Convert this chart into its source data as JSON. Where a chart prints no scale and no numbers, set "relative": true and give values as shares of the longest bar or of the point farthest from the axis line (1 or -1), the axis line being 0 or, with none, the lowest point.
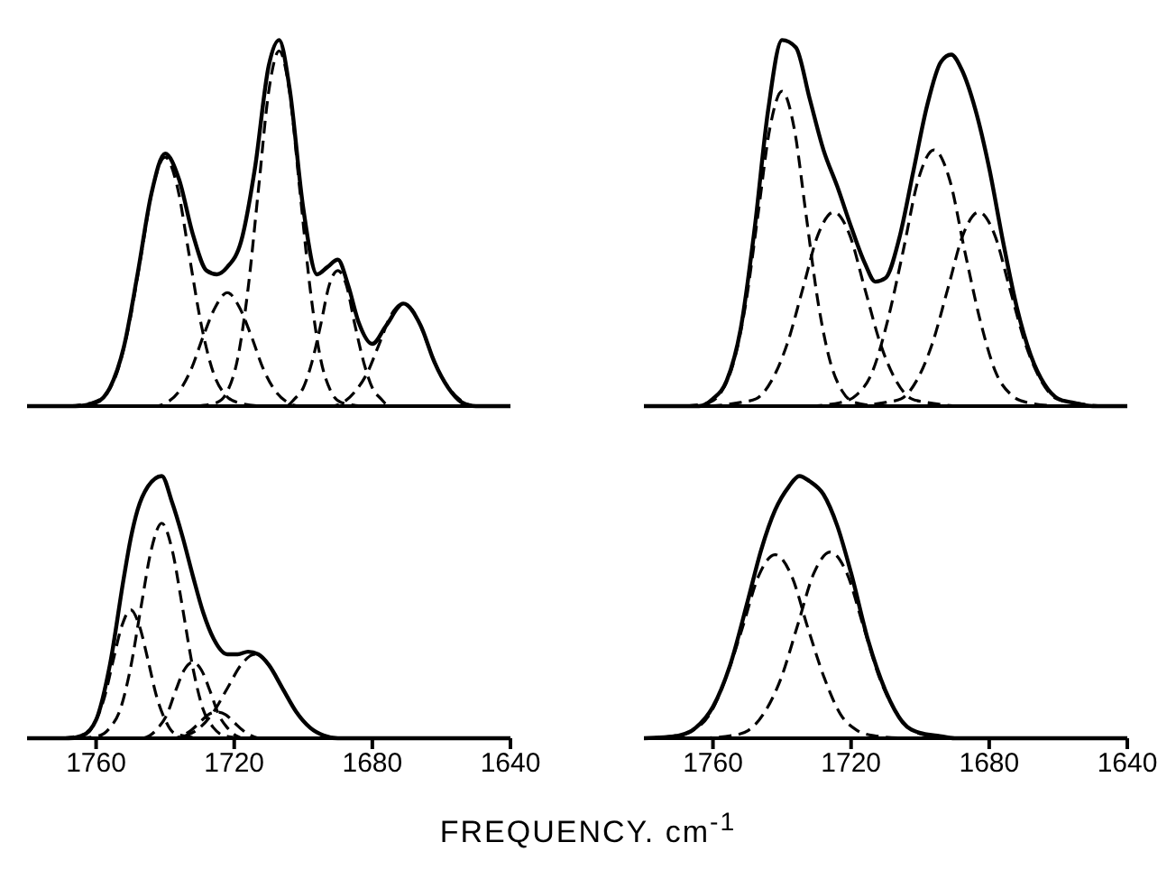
{
  "chart_data": [
    {
      "type": "line",
      "relative": true,
      "xlim": [
        1780,
        1640
      ],
      "tick_labels": false,
      "series": [
        {
          "color": "#000000",
          "line_style": "solid",
          "x": [
            1780,
            1772,
            1766,
            1760,
            1756,
            1752,
            1748,
            1744,
            1740,
            1736,
            1732,
            1728,
            1725,
            1722,
            1718,
            1714,
            1710,
            1707,
            1704,
            1700,
            1696,
            1693,
            1690,
            1687,
            1684,
            1680,
            1676,
            1671,
            1666,
            1662,
            1658,
            1654,
            1650,
            1646,
            1640
          ],
          "values": [
            0,
            0,
            0,
            0.01,
            0.05,
            0.16,
            0.36,
            0.58,
            0.69,
            0.62,
            0.47,
            0.37,
            0.36,
            0.38,
            0.45,
            0.65,
            0.93,
            1.0,
            0.87,
            0.54,
            0.36,
            0.38,
            0.4,
            0.33,
            0.23,
            0.17,
            0.22,
            0.28,
            0.22,
            0.12,
            0.05,
            0.01,
            0,
            0,
            0
          ]
        },
        {
          "color": "#000000",
          "line_style": "dashed",
          "x": [
            1768,
            1761,
            1757.5,
            1754,
            1750.5,
            1747,
            1743.5,
            1740,
            1736.5,
            1733,
            1729.5,
            1726,
            1722.5,
            1719,
            1712
          ],
          "values": [
            0,
            0.01,
            0.03,
            0.09,
            0.22,
            0.41,
            0.6,
            0.68,
            0.6,
            0.41,
            0.22,
            0.09,
            0.03,
            0.01,
            0
          ]
        },
        {
          "color": "#000000",
          "line_style": "dashed",
          "x": [
            1750,
            1743,
            1739.5,
            1736,
            1732.5,
            1729,
            1725.5,
            1722,
            1718.5,
            1715,
            1711.5,
            1708,
            1704.5,
            1701,
            1694
          ],
          "values": [
            0,
            0,
            0.01,
            0.04,
            0.1,
            0.19,
            0.27,
            0.31,
            0.27,
            0.19,
            0.1,
            0.04,
            0.01,
            0,
            0
          ]
        },
        {
          "color": "#000000",
          "line_style": "dashed",
          "x": [
            1731,
            1725,
            1722,
            1719,
            1716,
            1713,
            1710,
            1707,
            1704,
            1701,
            1698,
            1695,
            1692,
            1689,
            1683
          ],
          "values": [
            0,
            0.01,
            0.04,
            0.13,
            0.32,
            0.59,
            0.86,
            0.97,
            0.86,
            0.59,
            0.32,
            0.13,
            0.04,
            0.01,
            0
          ]
        },
        {
          "color": "#000000",
          "line_style": "dashed",
          "x": [
            1710,
            1705,
            1702.5,
            1700,
            1697.5,
            1695,
            1692.5,
            1690,
            1687.5,
            1685,
            1682.5,
            1680,
            1677.5,
            1675,
            1670
          ],
          "values": [
            0,
            0,
            0.02,
            0.05,
            0.12,
            0.22,
            0.33,
            0.37,
            0.33,
            0.22,
            0.12,
            0.05,
            0.02,
            0,
            0
          ]
        },
        {
          "color": "#000000",
          "line_style": "dashed",
          "x": [
            1699,
            1692,
            1688.5,
            1685,
            1681.5,
            1678,
            1674.5,
            1671,
            1667.5,
            1664,
            1660.5,
            1657,
            1653.5,
            1650,
            1643
          ],
          "values": [
            0,
            0,
            0.01,
            0.04,
            0.09,
            0.17,
            0.25,
            0.28,
            0.25,
            0.17,
            0.09,
            0.04,
            0.01,
            0,
            0
          ]
        }
      ]
    },
    {
      "type": "line",
      "relative": true,
      "xlim": [
        1780,
        1640
      ],
      "tick_labels": false,
      "series": [
        {
          "color": "#000000",
          "line_style": "solid",
          "x": [
            1780,
            1768,
            1764,
            1760,
            1756,
            1752,
            1748,
            1744,
            1740,
            1736,
            1732,
            1728,
            1724,
            1720,
            1716,
            1713,
            1710,
            1706,
            1702,
            1698,
            1694,
            1691,
            1688,
            1684,
            1680,
            1676,
            1672,
            1668,
            1664,
            1660,
            1656,
            1650,
            1640
          ],
          "values": [
            0,
            0,
            0,
            0.02,
            0.07,
            0.21,
            0.48,
            0.81,
            1.0,
            0.98,
            0.84,
            0.7,
            0.6,
            0.49,
            0.39,
            0.34,
            0.35,
            0.46,
            0.64,
            0.82,
            0.94,
            0.96,
            0.92,
            0.81,
            0.65,
            0.45,
            0.27,
            0.14,
            0.06,
            0.02,
            0.01,
            0,
            0
          ]
        },
        {
          "color": "#000000",
          "line_style": "dashed",
          "x": [
            1768,
            1761,
            1757.5,
            1754,
            1750.5,
            1747,
            1743.5,
            1740,
            1736.5,
            1733,
            1729.5,
            1726,
            1722.5,
            1719,
            1712
          ],
          "values": [
            0,
            0.01,
            0.04,
            0.12,
            0.28,
            0.52,
            0.76,
            0.86,
            0.76,
            0.52,
            0.28,
            0.12,
            0.04,
            0.01,
            0
          ]
        },
        {
          "color": "#000000",
          "line_style": "dashed",
          "x": [
            1761,
            1752,
            1747.5,
            1743,
            1738.5,
            1734,
            1729.5,
            1725,
            1720.5,
            1716,
            1711.5,
            1707,
            1702.5,
            1698,
            1689
          ],
          "values": [
            0,
            0.01,
            0.02,
            0.07,
            0.17,
            0.32,
            0.47,
            0.53,
            0.47,
            0.32,
            0.17,
            0.07,
            0.02,
            0.01,
            0
          ]
        },
        {
          "color": "#000000",
          "line_style": "dashed",
          "x": [
            1732,
            1723,
            1718.5,
            1714,
            1709.5,
            1705,
            1700.5,
            1696,
            1691.5,
            1687,
            1682.5,
            1678,
            1673.5,
            1669,
            1660
          ],
          "values": [
            0,
            0.01,
            0.03,
            0.09,
            0.23,
            0.42,
            0.62,
            0.7,
            0.62,
            0.42,
            0.23,
            0.09,
            0.03,
            0.01,
            0
          ]
        },
        {
          "color": "#000000",
          "line_style": "dashed",
          "x": [
            1719,
            1710,
            1705.5,
            1701,
            1696.5,
            1692,
            1687.5,
            1683,
            1678.5,
            1674,
            1669.5,
            1665,
            1660.5,
            1656,
            1647
          ],
          "values": [
            0,
            0.01,
            0.02,
            0.07,
            0.17,
            0.32,
            0.47,
            0.53,
            0.47,
            0.32,
            0.17,
            0.07,
            0.02,
            0.01,
            0
          ]
        }
      ]
    },
    {
      "type": "line",
      "relative": true,
      "xlim": [
        1780,
        1640
      ],
      "xticks": [
        1760,
        1720,
        1680,
        1640
      ],
      "xlabel": "FREQUENCY. cm$^{-1}$",
      "series": [
        {
          "color": "#000000",
          "line_style": "solid",
          "x": [
            1780,
            1768,
            1764,
            1760,
            1756,
            1752,
            1750,
            1748,
            1745,
            1741,
            1738,
            1735,
            1732,
            1729,
            1726,
            1722,
            1719,
            1716,
            1713,
            1710,
            1706,
            1702,
            1698,
            1694,
            1690,
            1640
          ],
          "values": [
            0,
            0,
            0.01,
            0.07,
            0.28,
            0.61,
            0.76,
            0.87,
            0.96,
            1.0,
            0.9,
            0.77,
            0.62,
            0.48,
            0.38,
            0.32,
            0.32,
            0.33,
            0.32,
            0.28,
            0.19,
            0.1,
            0.04,
            0.01,
            0,
            0
          ]
        },
        {
          "color": "#000000",
          "line_style": "dashed",
          "x": [
            1770,
            1765,
            1762.5,
            1760,
            1757.5,
            1755,
            1752.5,
            1750,
            1747.5,
            1745,
            1742.5,
            1740,
            1737.5,
            1735,
            1730
          ],
          "values": [
            0,
            0.01,
            0.02,
            0.07,
            0.16,
            0.3,
            0.43,
            0.49,
            0.43,
            0.3,
            0.16,
            0.07,
            0.02,
            0.01,
            0
          ]
        },
        {
          "color": "#000000",
          "line_style": "dashed",
          "x": [
            1765,
            1759,
            1756,
            1753,
            1750,
            1747,
            1744,
            1741,
            1738,
            1735,
            1732,
            1729,
            1726,
            1723,
            1717
          ],
          "values": [
            0,
            0.01,
            0.04,
            0.11,
            0.27,
            0.5,
            0.72,
            0.82,
            0.72,
            0.5,
            0.27,
            0.11,
            0.04,
            0.01,
            0
          ]
        },
        {
          "color": "#000000",
          "line_style": "dashed",
          "x": [
            1752,
            1747,
            1744.5,
            1742,
            1739.5,
            1737,
            1734.5,
            1732,
            1729.5,
            1727,
            1724.5,
            1722,
            1719.5,
            1717,
            1712
          ],
          "values": [
            0,
            0,
            0.01,
            0.04,
            0.09,
            0.18,
            0.26,
            0.29,
            0.26,
            0.18,
            0.09,
            0.04,
            0.01,
            0,
            0
          ]
        },
        {
          "color": "#000000",
          "line_style": "dashed",
          "x": [
            1745,
            1740,
            1737.5,
            1735,
            1732.5,
            1730,
            1727.5,
            1725,
            1722.5,
            1720,
            1717.5,
            1715,
            1712.5,
            1710,
            1705
          ],
          "values": [
            0,
            0,
            0,
            0.01,
            0.03,
            0.06,
            0.09,
            0.1,
            0.09,
            0.06,
            0.03,
            0.01,
            0,
            0,
            0
          ]
        },
        {
          "color": "#000000",
          "line_style": "dashed",
          "x": [
            1746,
            1738,
            1734,
            1730,
            1726,
            1722,
            1718,
            1714,
            1710,
            1706,
            1702,
            1698,
            1694,
            1690,
            1682
          ],
          "values": [
            0,
            0,
            0.01,
            0.04,
            0.1,
            0.19,
            0.28,
            0.32,
            0.28,
            0.19,
            0.1,
            0.04,
            0.01,
            0,
            0
          ]
        }
      ]
    },
    {
      "type": "line",
      "relative": true,
      "xlim": [
        1780,
        1640
      ],
      "xticks": [
        1760,
        1720,
        1680,
        1640
      ],
      "series": [
        {
          "color": "#000000",
          "line_style": "solid",
          "x": [
            1780,
            1770,
            1765,
            1760,
            1755,
            1750,
            1746,
            1742,
            1738,
            1735,
            1732,
            1728,
            1724,
            1720,
            1715,
            1710,
            1705,
            1700,
            1695,
            1690,
            1680,
            1640
          ],
          "values": [
            0,
            0.01,
            0.04,
            0.12,
            0.28,
            0.52,
            0.72,
            0.87,
            0.96,
            1.0,
            0.98,
            0.93,
            0.81,
            0.63,
            0.37,
            0.18,
            0.06,
            0.02,
            0.01,
            0,
            0,
            0
          ]
        },
        {
          "color": "#000000",
          "line_style": "dashed",
          "x": [
            1780,
            1770.5,
            1765.75,
            1761,
            1756.25,
            1751.5,
            1746.75,
            1742,
            1737.25,
            1732.5,
            1727.75,
            1723,
            1718.25,
            1713.5,
            1704
          ],
          "values": [
            0,
            0.01,
            0.03,
            0.09,
            0.23,
            0.42,
            0.62,
            0.7,
            0.62,
            0.42,
            0.23,
            0.09,
            0.03,
            0.01,
            0
          ]
        },
        {
          "color": "#000000",
          "line_style": "dashed",
          "x": [
            1764,
            1754.5,
            1749.75,
            1745,
            1740.25,
            1735.5,
            1730.75,
            1726,
            1721.25,
            1716.5,
            1711.75,
            1707,
            1702.25,
            1697.5,
            1688
          ],
          "values": [
            0,
            0.01,
            0.03,
            0.1,
            0.23,
            0.43,
            0.63,
            0.71,
            0.63,
            0.43,
            0.23,
            0.1,
            0.03,
            0.01,
            0
          ]
        }
      ]
    }
  ]
}
